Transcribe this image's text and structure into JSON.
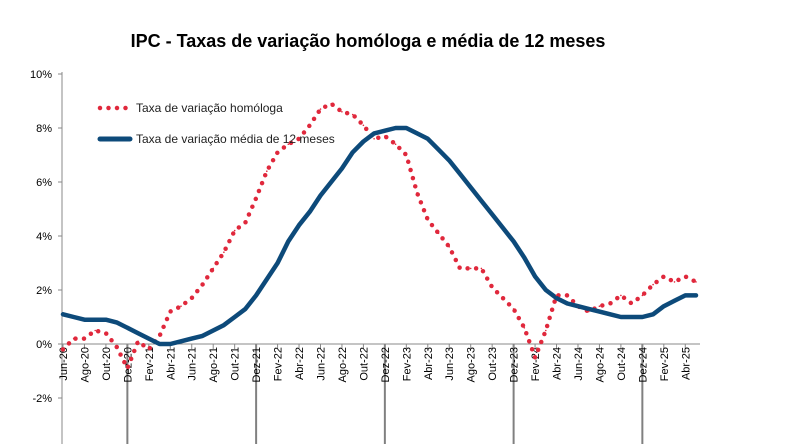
{
  "chart_data": {
    "type": "line",
    "title": "IPC - Taxas de variação homóloga e média de 12 meses",
    "xlabel": "",
    "ylabel": "",
    "ylim": [
      -2,
      10
    ],
    "ytick_labels": [
      "-2%",
      "0%",
      "2%",
      "4%",
      "6%",
      "8%",
      "10%"
    ],
    "grid": "vertical lines at December of each year",
    "legend_position": "top-left",
    "x": [
      "Jun-20",
      "Jul-20",
      "Ago-20",
      "Set-20",
      "Out-20",
      "Nov-20",
      "Dez-20",
      "Jan-21",
      "Fev-21",
      "Mar-21",
      "Abr-21",
      "Mai-21",
      "Jun-21",
      "Jul-21",
      "Ago-21",
      "Set-21",
      "Out-21",
      "Nov-21",
      "Dez-21",
      "Jan-22",
      "Fev-22",
      "Mar-22",
      "Abr-22",
      "Mai-22",
      "Jun-22",
      "Jul-22",
      "Ago-22",
      "Set-22",
      "Out-22",
      "Nov-22",
      "Dez-22",
      "Jan-23",
      "Fev-23",
      "Mar-23",
      "Abr-23",
      "Mai-23",
      "Jun-23",
      "Jul-23",
      "Ago-23",
      "Set-23",
      "Out-23",
      "Nov-23",
      "Dez-23",
      "Jan-24",
      "Fev-24",
      "Mar-24",
      "Abr-24",
      "Mai-24",
      "Jun-24",
      "Jul-24",
      "Ago-24",
      "Set-24",
      "Out-24",
      "Nov-24",
      "Dez-24",
      "Jan-25",
      "Fev-25",
      "Mar-25",
      "Abr-25",
      "Mai-25"
    ],
    "x_tick_labels": [
      "Jun-20",
      "Ago-20",
      "Out-20",
      "Dez-20",
      "Fev-21",
      "Abr-21",
      "Jun-21",
      "Ago-21",
      "Out-21",
      "Dez-21",
      "Fev-22",
      "Abr-22",
      "Jun-22",
      "Ago-22",
      "Out-22",
      "Dez-22",
      "Fev-23",
      "Abr-23",
      "Jun-23",
      "Ago-23",
      "Out-23",
      "Dez-23",
      "Fev-24",
      "Abr-24",
      "Jun-24",
      "Ago-24",
      "Out-24",
      "Dez-24",
      "Fev-25",
      "Abr-25"
    ],
    "series": [
      {
        "name": "Taxa de variação homóloga",
        "style": "dotted",
        "color": "#e0283c",
        "values": [
          -0.2,
          0.2,
          0.2,
          0.5,
          0.4,
          -0.1,
          -0.9,
          0.1,
          -0.2,
          0.3,
          1.2,
          1.4,
          1.7,
          2.2,
          2.8,
          3.4,
          4.2,
          4.5,
          5.4,
          6.4,
          7.1,
          7.4,
          7.6,
          8.1,
          8.7,
          8.9,
          8.6,
          8.5,
          8.1,
          7.6,
          7.7,
          7.4,
          7.0,
          5.6,
          4.6,
          4.1,
          3.6,
          2.8,
          2.8,
          2.8,
          2.1,
          1.7,
          1.3,
          0.6,
          -0.5,
          0.5,
          1.8,
          1.8,
          1.4,
          1.2,
          1.4,
          1.5,
          1.8,
          1.5,
          1.8,
          2.2,
          2.5,
          2.3,
          2.5,
          2.3
        ]
      },
      {
        "name": "Taxa de variação média de 12 meses",
        "style": "solid",
        "color": "#0d4a7a",
        "values": [
          1.1,
          1.0,
          0.9,
          0.9,
          0.9,
          0.8,
          0.6,
          0.4,
          0.2,
          0.0,
          0.0,
          0.1,
          0.2,
          0.3,
          0.5,
          0.7,
          1.0,
          1.3,
          1.8,
          2.4,
          3.0,
          3.8,
          4.4,
          4.9,
          5.5,
          6.0,
          6.5,
          7.1,
          7.5,
          7.8,
          7.9,
          8.0,
          8.0,
          7.8,
          7.6,
          7.2,
          6.8,
          6.3,
          5.8,
          5.3,
          4.8,
          4.3,
          3.8,
          3.2,
          2.5,
          2.0,
          1.7,
          1.5,
          1.4,
          1.3,
          1.2,
          1.1,
          1.0,
          1.0,
          1.0,
          1.1,
          1.4,
          1.6,
          1.8,
          1.8
        ]
      }
    ]
  }
}
